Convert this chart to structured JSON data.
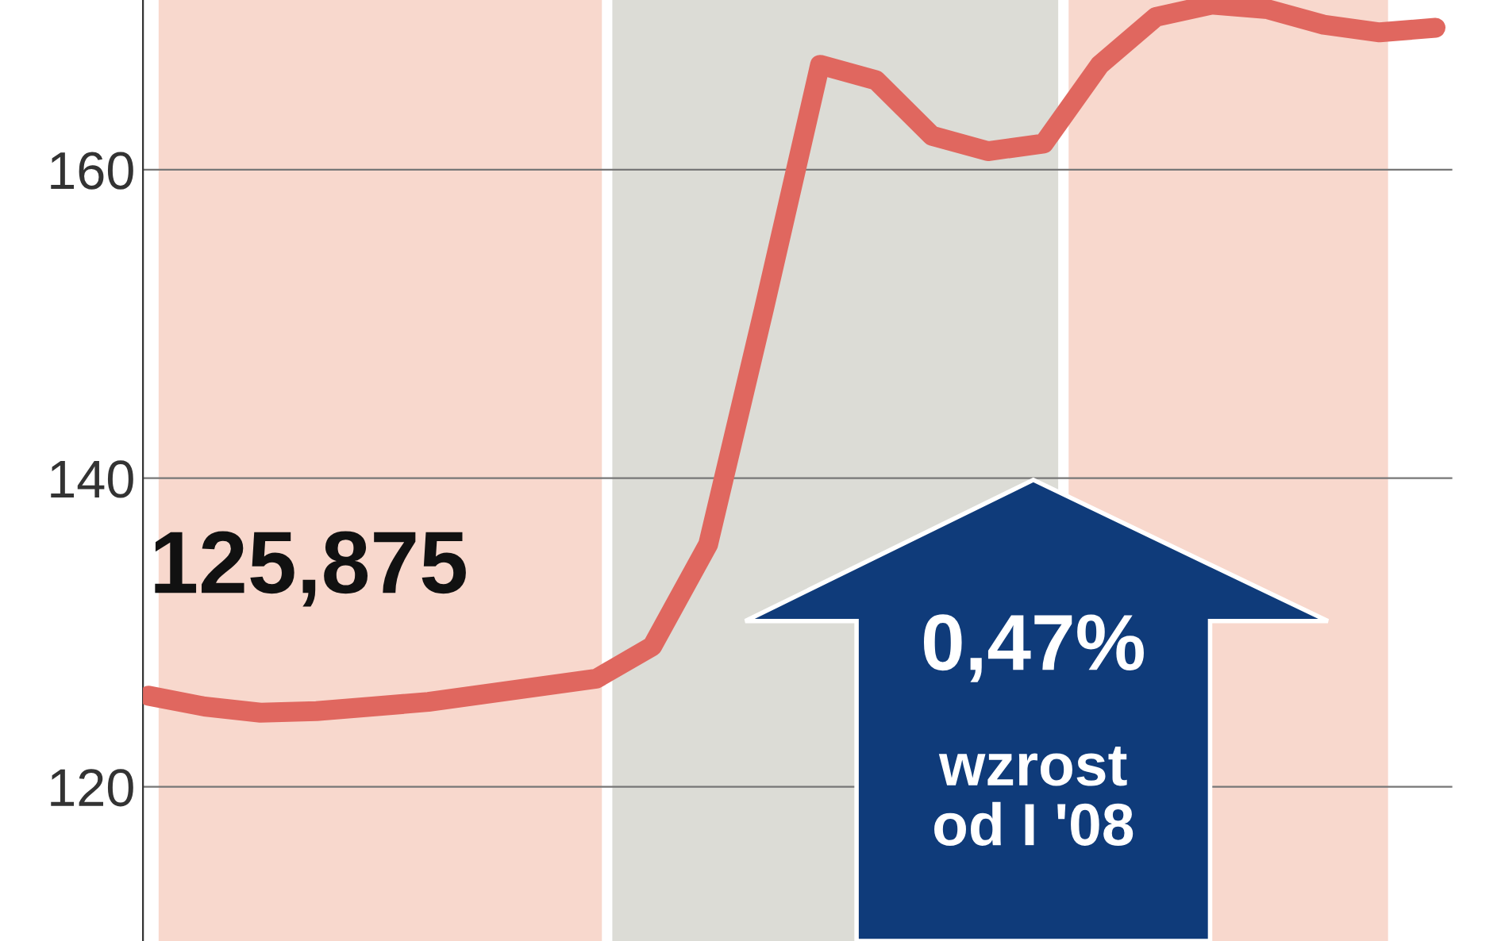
{
  "chart_data": {
    "type": "line",
    "categories": [
      null,
      null,
      null,
      null,
      null,
      null,
      null,
      null,
      null,
      null,
      null,
      null,
      null,
      null,
      null,
      null,
      null,
      null,
      null,
      null,
      null,
      null,
      null,
      null
    ],
    "series": [
      {
        "color": "#e0675f",
        "values": [
          125.9,
          125.2,
          124.8,
          124.9,
          125.2,
          125.5,
          126.0,
          126.5,
          127.0,
          129.1,
          135.7,
          151.0,
          166.8,
          165.8,
          162.2,
          161.2,
          161.7,
          166.8,
          169.9,
          170.7,
          170.4,
          169.4,
          168.9,
          169.2
        ]
      }
    ],
    "ylim": [
      110,
      171
    ],
    "yticks": [
      120,
      140,
      160
    ],
    "grid": "y",
    "tick_labels": "y",
    "marker": "none",
    "line_style": "solid",
    "annotations": [
      "125,875",
      "0,47%",
      "wzrost\nod I '08"
    ]
  }
}
